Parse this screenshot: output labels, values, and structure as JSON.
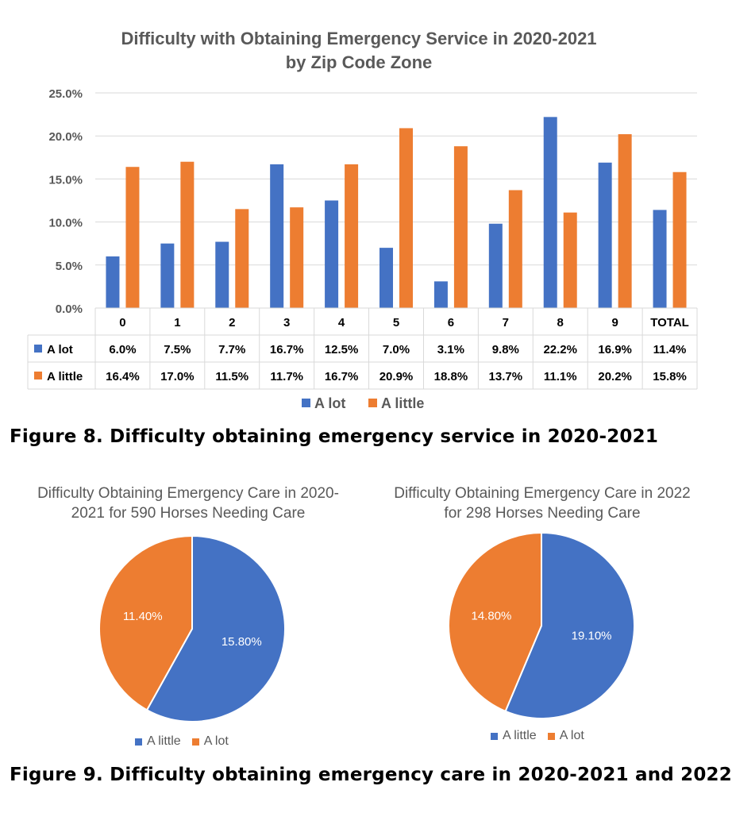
{
  "colors": {
    "a_lot": "#4472C4",
    "a_little": "#ED7D31",
    "grid": "#D9D9D9",
    "text": "#595959"
  },
  "figure8": {
    "caption": "Figure 8. Difficulty obtaining emergency service in 2020-2021"
  },
  "figure9": {
    "caption": "Figure 9. Difficulty obtaining emergency care in 2020-2021 and 2022"
  },
  "chart_data": [
    {
      "type": "bar",
      "title": "Difficulty with Obtaining Emergency Service in 2020-2021",
      "subtitle": "by Zip Code Zone",
      "categories": [
        "0",
        "1",
        "2",
        "3",
        "4",
        "5",
        "6",
        "7",
        "8",
        "9",
        "TOTAL"
      ],
      "series": [
        {
          "name": "A lot",
          "values": [
            6.0,
            7.5,
            7.7,
            16.7,
            12.5,
            7.0,
            3.1,
            9.8,
            22.2,
            16.9,
            11.4
          ],
          "labels": [
            "6.0%",
            "7.5%",
            "7.7%",
            "16.7%",
            "12.5%",
            "7.0%",
            "3.1%",
            "9.8%",
            "22.2%",
            "16.9%",
            "11.4%"
          ]
        },
        {
          "name": "A little",
          "values": [
            16.4,
            17.0,
            11.5,
            11.7,
            16.7,
            20.9,
            18.8,
            13.7,
            11.1,
            20.2,
            15.8
          ],
          "labels": [
            "16.4%",
            "17.0%",
            "11.5%",
            "11.7%",
            "16.7%",
            "20.9%",
            "18.8%",
            "13.7%",
            "11.1%",
            "20.2%",
            "15.8%"
          ]
        }
      ],
      "ylim": [
        0,
        25
      ],
      "yticks": [
        "0.0%",
        "5.0%",
        "10.0%",
        "15.0%",
        "20.0%",
        "25.0%"
      ],
      "grid": true,
      "legend": "bottom",
      "data_table": true
    },
    {
      "type": "pie",
      "title": "Difficulty Obtaining Emergency Care in 2020-2021 for 590 Horses Needing Care",
      "title_lines": [
        "Difficulty Obtaining Emergency Care in 2020-",
        "2021 for 590 Horses Needing Care"
      ],
      "slices": [
        {
          "name": "A little",
          "value": 15.8,
          "label": "15.80%"
        },
        {
          "name": "A lot",
          "value": 11.4,
          "label": "11.40%"
        }
      ],
      "legend": "bottom"
    },
    {
      "type": "pie",
      "title": "Difficulty Obtaining Emergency Care in 2022 for 298 Horses Needing Care",
      "title_lines": [
        "Difficulty Obtaining Emergency Care in 2022",
        "for 298 Horses Needing Care"
      ],
      "slices": [
        {
          "name": "A little",
          "value": 19.1,
          "label": "19.10%"
        },
        {
          "name": "A lot",
          "value": 14.8,
          "label": "14.80%"
        }
      ],
      "legend": "bottom"
    }
  ]
}
